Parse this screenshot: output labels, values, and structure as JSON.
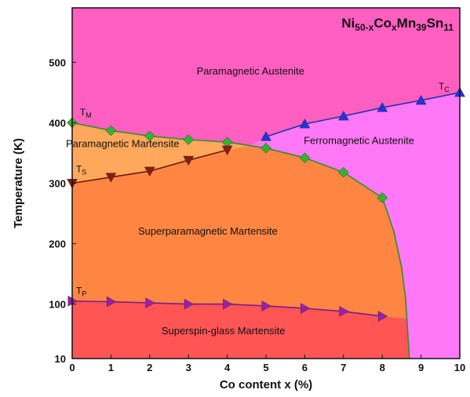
{
  "chart_data": {
    "type": "phase-diagram",
    "title": {
      "parts": [
        {
          "text": "Ni",
          "sub": false
        },
        {
          "text": "50-x",
          "sub": true
        },
        {
          "text": "Co",
          "sub": false
        },
        {
          "text": "x",
          "sub": true
        },
        {
          "text": "Mn",
          "sub": false
        },
        {
          "text": "39",
          "sub": true
        },
        {
          "text": "Sn",
          "sub": false
        },
        {
          "text": "11",
          "sub": true
        }
      ]
    },
    "xlabel": "Co content x (%)",
    "ylabel": "Temperature (K)",
    "xlim": [
      0,
      10
    ],
    "ylim": [
      10,
      590
    ],
    "xticks": [
      "0",
      "1",
      "2",
      "3",
      "4",
      "5",
      "6",
      "7",
      "8",
      "9",
      "10"
    ],
    "yticks": [
      {
        "value": 10,
        "label": "10"
      },
      {
        "value": 100,
        "label": "100"
      },
      {
        "value": 200,
        "label": "200"
      },
      {
        "value": 300,
        "label": "300"
      },
      {
        "value": 400,
        "label": "400"
      },
      {
        "value": 500,
        "label": "500"
      }
    ],
    "regions": [
      {
        "name": "Paramagnetic Austenite",
        "color": "#ff5fc0",
        "anchor": {
          "x": 4.6,
          "y": 480
        }
      },
      {
        "name": "Ferromagnetic Austenite",
        "color": "#ff78f7",
        "anchor": {
          "x": 7.4,
          "y": 365
        }
      },
      {
        "name": "Paramagnetic Martensite",
        "color": "#ffa85c",
        "anchor": {
          "x": 1.3,
          "y": 360
        }
      },
      {
        "name": "Superparamagnetic Martensite",
        "color": "#ff8642",
        "anchor": {
          "x": 3.5,
          "y": 215
        }
      },
      {
        "name": "Superspin-glass Martensite",
        "color": "#ff5555",
        "anchor": {
          "x": 3.9,
          "y": 50
        }
      }
    ],
    "series": [
      {
        "name": "TM",
        "label_main": "T",
        "label_sub": "M",
        "label_at": {
          "x": 0.2,
          "y": 412
        },
        "marker": "diamond",
        "color": "#33b233",
        "line_color": "#2f8f2f",
        "x": [
          0,
          1,
          2,
          3,
          4,
          5,
          6,
          7,
          8
        ],
        "y": [
          400,
          387,
          378,
          372,
          368,
          358,
          342,
          318,
          276
        ]
      },
      {
        "name": "TS",
        "label_main": "T",
        "label_sub": "S",
        "label_at": {
          "x": 0.1,
          "y": 318
        },
        "marker": "triangle-down",
        "color": "#8b1a10",
        "line_color": "#6b1a10",
        "x": [
          0,
          1,
          2,
          3,
          4
        ],
        "y": [
          300,
          310,
          320,
          338,
          355
        ]
      },
      {
        "name": "TC",
        "label_main": "T",
        "label_sub": "C",
        "label_at": {
          "x": 9.45,
          "y": 455
        },
        "marker": "triangle-up",
        "color": "#2233dd",
        "line_color": "#2233aa",
        "x": [
          5,
          6,
          7,
          8,
          9,
          10
        ],
        "y": [
          377,
          398,
          411,
          425,
          437,
          450
        ]
      },
      {
        "name": "TP",
        "label_main": "T",
        "label_sub": "P",
        "label_at": {
          "x": 0.1,
          "y": 117
        },
        "marker": "triangle-right",
        "color": "#9a1fb0",
        "line_color": "#7a1a90",
        "x": [
          0,
          1,
          2,
          3,
          4,
          5,
          6,
          7,
          8
        ],
        "y": [
          105,
          104,
          102,
          100,
          100,
          97,
          93,
          88,
          80
        ]
      }
    ],
    "martensite_boundary_extension": {
      "x": [
        8,
        8.3,
        8.5,
        8.6,
        8.65,
        8.7
      ],
      "y": [
        276,
        220,
        160,
        110,
        60,
        10
      ]
    }
  }
}
